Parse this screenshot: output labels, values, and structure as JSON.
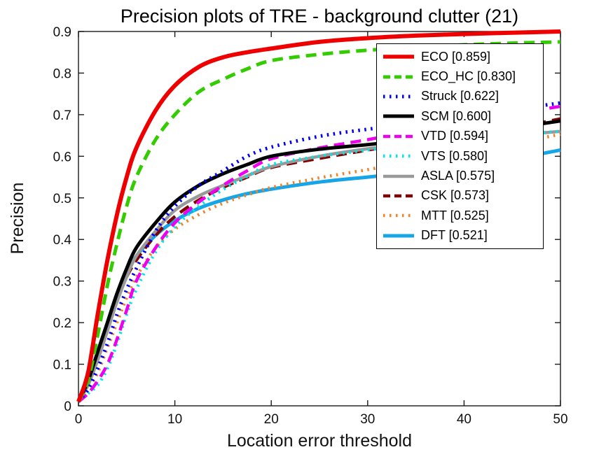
{
  "chart_data": {
    "type": "line",
    "title": "Precision plots of TRE - background clutter (21)",
    "xlabel": "Location error threshold",
    "ylabel": "Precision",
    "xlim": [
      0,
      50
    ],
    "ylim": [
      0,
      0.9
    ],
    "xticks": [
      "0",
      "10",
      "20",
      "30",
      "40",
      "50"
    ],
    "yticks": [
      "0",
      "0.1",
      "0.2",
      "0.3",
      "0.4",
      "0.5",
      "0.6",
      "0.7",
      "0.8",
      "0.9"
    ],
    "grid": false,
    "legend_position": "upper-right",
    "background_color": "#ffffff",
    "axis_color": "#1a1a1a",
    "x": [
      0,
      1,
      2,
      3,
      4,
      5,
      6,
      8,
      10,
      12.5,
      15,
      17.5,
      20,
      25,
      30,
      35,
      40,
      45,
      50
    ],
    "series": [
      {
        "name": "ECO",
        "label": "ECO [0.859]",
        "score": 0.859,
        "color": "#ee0000",
        "style": "solid",
        "width": 6,
        "values": [
          0.01,
          0.08,
          0.22,
          0.35,
          0.46,
          0.55,
          0.62,
          0.71,
          0.77,
          0.815,
          0.838,
          0.85,
          0.859,
          0.875,
          0.884,
          0.89,
          0.894,
          0.897,
          0.9
        ]
      },
      {
        "name": "ECO_HC",
        "label": "ECO_HC [0.830]",
        "score": 0.83,
        "color": "#33cc00",
        "style": "dashed",
        "width": 5,
        "values": [
          0.01,
          0.06,
          0.17,
          0.29,
          0.39,
          0.48,
          0.55,
          0.64,
          0.7,
          0.755,
          0.785,
          0.81,
          0.83,
          0.845,
          0.855,
          0.862,
          0.868,
          0.872,
          0.875
        ]
      },
      {
        "name": "Struck",
        "label": "Struck [0.622]",
        "score": 0.622,
        "color": "#0000ee",
        "style": "dotted",
        "width": 5,
        "values": [
          0.01,
          0.04,
          0.09,
          0.15,
          0.22,
          0.28,
          0.33,
          0.42,
          0.48,
          0.53,
          0.565,
          0.6,
          0.622,
          0.648,
          0.665,
          0.678,
          0.695,
          0.712,
          0.728
        ]
      },
      {
        "name": "SCM",
        "label": "SCM [0.600]",
        "score": 0.6,
        "color": "#000000",
        "style": "solid",
        "width": 5,
        "values": [
          0.01,
          0.06,
          0.13,
          0.2,
          0.27,
          0.33,
          0.38,
          0.44,
          0.49,
          0.53,
          0.558,
          0.58,
          0.6,
          0.617,
          0.628,
          0.64,
          0.654,
          0.668,
          0.685
        ]
      },
      {
        "name": "VTD",
        "label": "VTD [0.594]",
        "score": 0.594,
        "color": "#ee00ee",
        "style": "dashed",
        "width": 4.5,
        "values": [
          0.01,
          0.03,
          0.06,
          0.1,
          0.16,
          0.23,
          0.3,
          0.38,
          0.44,
          0.49,
          0.53,
          0.565,
          0.594,
          0.62,
          0.64,
          0.662,
          0.685,
          0.702,
          0.72
        ]
      },
      {
        "name": "VTS",
        "label": "VTS [0.580]",
        "score": 0.58,
        "color": "#00e6e6",
        "style": "dotted",
        "width": 4.5,
        "values": [
          0.01,
          0.03,
          0.05,
          0.09,
          0.15,
          0.22,
          0.28,
          0.37,
          0.43,
          0.48,
          0.52,
          0.552,
          0.58,
          0.6,
          0.615,
          0.63,
          0.643,
          0.652,
          0.66
        ]
      },
      {
        "name": "ASLA",
        "label": "ASLA [0.575]",
        "score": 0.575,
        "color": "#999999",
        "style": "solid",
        "width": 4.5,
        "values": [
          0.01,
          0.05,
          0.11,
          0.18,
          0.25,
          0.31,
          0.36,
          0.42,
          0.47,
          0.505,
          0.53,
          0.553,
          0.575,
          0.6,
          0.618,
          0.63,
          0.64,
          0.65,
          0.66
        ]
      },
      {
        "name": "CSK",
        "label": "CSK [0.573]",
        "score": 0.573,
        "color": "#800000",
        "style": "dashed",
        "width": 4.5,
        "values": [
          0.01,
          0.06,
          0.12,
          0.19,
          0.26,
          0.31,
          0.35,
          0.41,
          0.455,
          0.495,
          0.525,
          0.55,
          0.573,
          0.595,
          0.615,
          0.635,
          0.653,
          0.668,
          0.69
        ]
      },
      {
        "name": "MTT",
        "label": "MTT [0.525]",
        "score": 0.525,
        "color": "#f08228",
        "style": "dotted",
        "width": 4.5,
        "values": [
          0.01,
          0.04,
          0.08,
          0.14,
          0.2,
          0.26,
          0.31,
          0.38,
          0.425,
          0.46,
          0.487,
          0.507,
          0.525,
          0.548,
          0.568,
          0.588,
          0.61,
          0.63,
          0.653
        ]
      },
      {
        "name": "DFT",
        "label": "DFT [0.521]",
        "score": 0.521,
        "color": "#16a5e6",
        "style": "solid",
        "width": 5,
        "values": [
          0.01,
          0.06,
          0.13,
          0.2,
          0.27,
          0.32,
          0.36,
          0.41,
          0.445,
          0.475,
          0.495,
          0.51,
          0.521,
          0.538,
          0.55,
          0.562,
          0.576,
          0.593,
          0.615
        ]
      }
    ]
  }
}
